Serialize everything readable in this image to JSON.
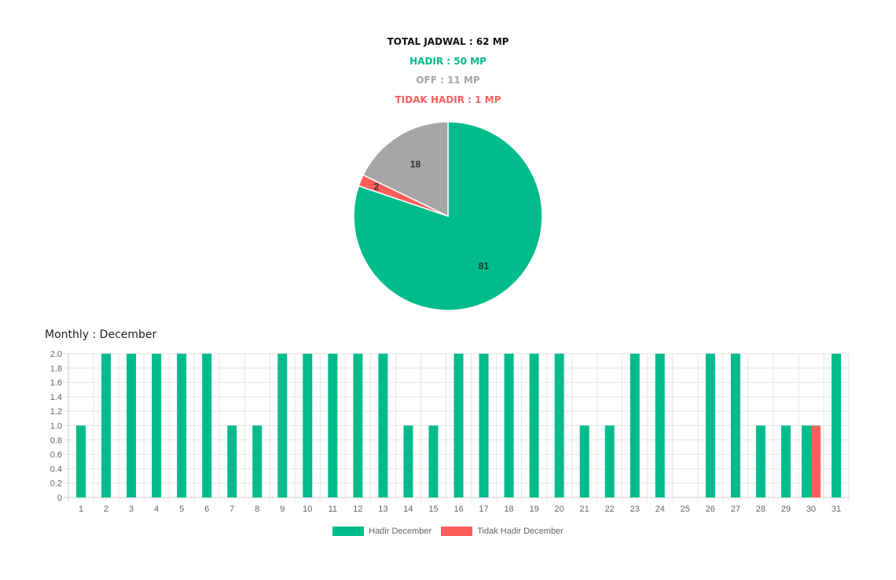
{
  "summary": {
    "total": "TOTAL JADWAL : 62 MP",
    "hadir": "HADIR : 50 MP",
    "off": "OFF : 11 MP",
    "tidak_hadir": "TIDAK HADIR : 1 MP"
  },
  "colors": {
    "hadir": "#00BC8C",
    "off": "#A6A6A6",
    "tidak_hadir": "#FF5C5C",
    "total": "#111111"
  },
  "monthly_title": "Monthly : December",
  "chart_data": [
    {
      "type": "pie",
      "slices": [
        {
          "value": 81,
          "label": "81",
          "color": "#00BC8C"
        },
        {
          "value": 2,
          "label": "2",
          "color": "#FF5C5C"
        },
        {
          "value": 18,
          "label": "18",
          "color": "#A6A6A6"
        }
      ]
    },
    {
      "type": "bar",
      "categories": [
        "1",
        "2",
        "3",
        "4",
        "5",
        "6",
        "7",
        "8",
        "9",
        "10",
        "11",
        "12",
        "13",
        "14",
        "15",
        "16",
        "17",
        "18",
        "19",
        "20",
        "21",
        "22",
        "23",
        "24",
        "25",
        "26",
        "27",
        "28",
        "29",
        "30",
        "31"
      ],
      "series": [
        {
          "name": "Hadir December",
          "color": "#00BC8C",
          "values": [
            1,
            2,
            2,
            2,
            2,
            2,
            1,
            1,
            2,
            2,
            2,
            2,
            2,
            1,
            1,
            2,
            2,
            2,
            2,
            2,
            1,
            1,
            2,
            2,
            0,
            2,
            2,
            1,
            1,
            1,
            2
          ]
        },
        {
          "name": "Tidak Hadir December",
          "color": "#FF5C5C",
          "values": [
            0,
            0,
            0,
            0,
            0,
            0,
            0,
            0,
            0,
            0,
            0,
            0,
            0,
            0,
            0,
            0,
            0,
            0,
            0,
            0,
            0,
            0,
            0,
            0,
            0,
            0,
            0,
            0,
            0,
            1,
            0
          ]
        }
      ],
      "ylim": [
        0,
        2.0
      ],
      "yticks": [
        "0",
        "0.2",
        "0.4",
        "0.6",
        "0.8",
        "1.0",
        "1.2",
        "1.4",
        "1.6",
        "1.8",
        "2.0"
      ],
      "grid": true,
      "legend_position": "bottom"
    }
  ]
}
